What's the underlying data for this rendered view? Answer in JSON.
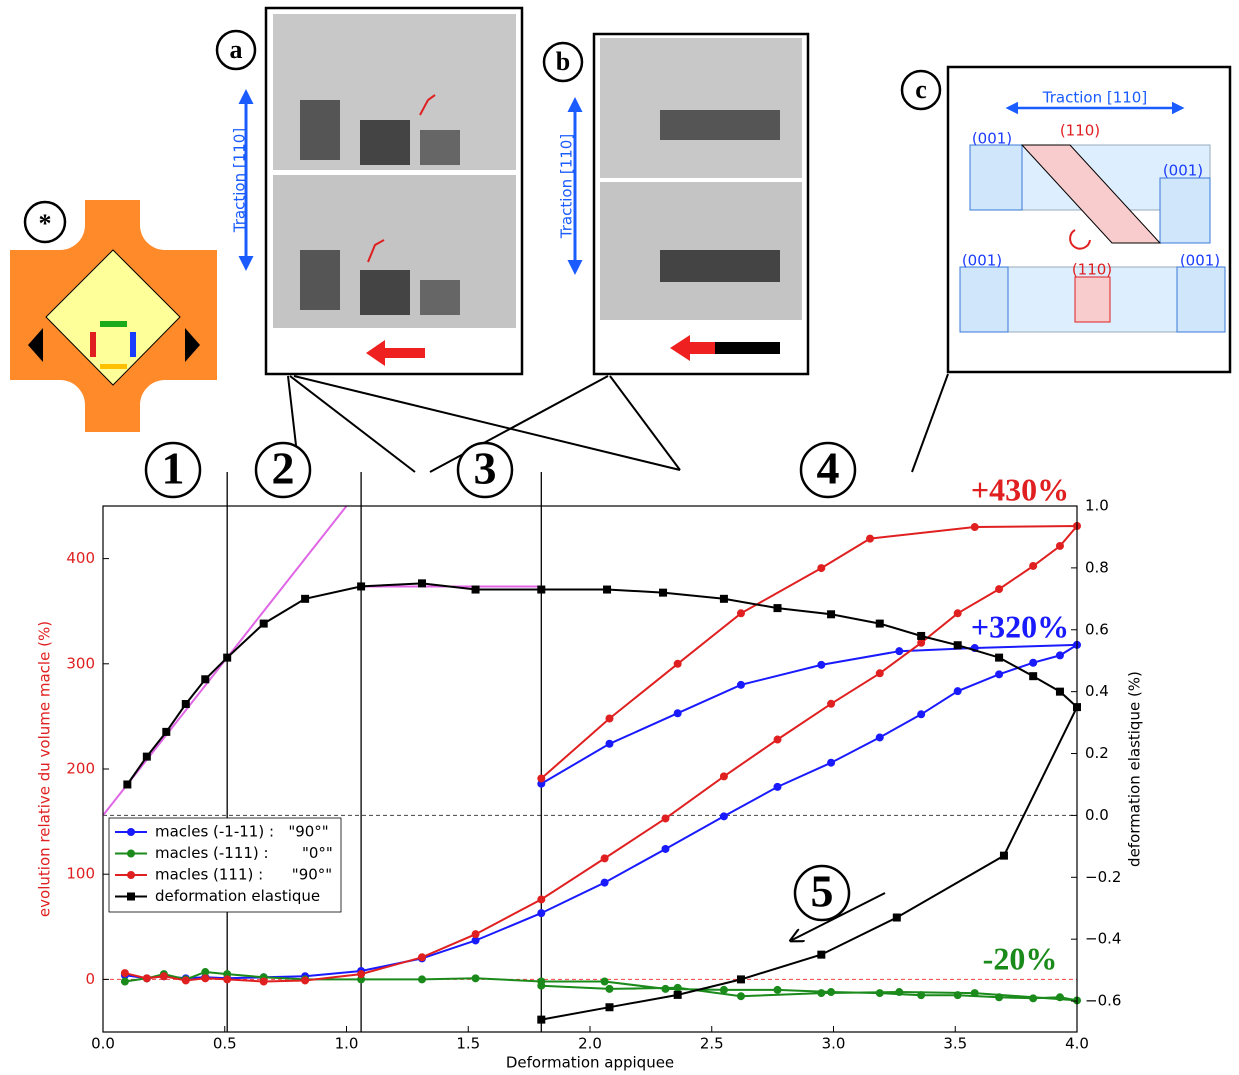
{
  "chart_data": {
    "type": "line",
    "x_label": "Deformation appiquee",
    "y_label": "evolution relative du volume macle (%)",
    "y2_label": "deformation elastique (%)",
    "xlim": [
      0,
      4
    ],
    "xticks": [
      {
        "value": 0,
        "label": "0.0"
      },
      {
        "value": 0.5,
        "label": "0.5"
      },
      {
        "value": 1,
        "label": "1.0"
      },
      {
        "value": 1.5,
        "label": "1.5"
      },
      {
        "value": 2,
        "label": "2.0"
      },
      {
        "value": 2.5,
        "label": "2.5"
      },
      {
        "value": 3,
        "label": "3.0"
      },
      {
        "value": 3.5,
        "label": "3.5"
      },
      {
        "value": 4,
        "label": "4.0"
      }
    ],
    "ylim": [
      -50,
      450
    ],
    "yticks": [
      0,
      100,
      200,
      300,
      400
    ],
    "y2lim": [
      -0.7,
      1.0
    ],
    "y2ticks": [
      {
        "value": -0.6,
        "label": "−0.6"
      },
      {
        "value": -0.4,
        "label": "−0.4"
      },
      {
        "value": -0.2,
        "label": "−0.2"
      },
      {
        "value": 0,
        "label": "0.0"
      },
      {
        "value": 0.2,
        "label": "0.2"
      },
      {
        "value": 0.4,
        "label": "0.4"
      },
      {
        "value": 0.6,
        "label": "0.6"
      },
      {
        "value": 0.8,
        "label": "0.8"
      },
      {
        "value": 1,
        "label": "1.0"
      }
    ],
    "legend": "lower left",
    "series": [
      {
        "name": "macles (-1-11) :   \"90°\"",
        "color": "#1a1aff",
        "marker": "circle",
        "x": [
          0.09,
          0.18,
          0.25,
          0.34,
          0.42,
          0.51,
          0.66,
          0.83,
          1.06,
          1.31,
          1.53,
          1.8,
          2.06,
          2.31,
          2.55,
          2.77,
          2.99,
          3.19,
          3.36,
          3.51,
          3.68,
          3.82,
          3.93,
          4.0,
          3.58,
          3.27,
          2.95,
          2.62,
          2.36,
          2.08,
          1.8
        ],
        "values": [
          4,
          1,
          3,
          1,
          2,
          1,
          2,
          3,
          8,
          20,
          37,
          63,
          92,
          124,
          155,
          183,
          206,
          230,
          252,
          274,
          290,
          301,
          308,
          318,
          315,
          312,
          299,
          280,
          253,
          224,
          186
        ]
      },
      {
        "name": "macles (-111) :       \"0°\"",
        "color": "#1a8a1a",
        "marker": "circle",
        "x": [
          0.09,
          0.18,
          0.25,
          0.34,
          0.42,
          0.51,
          0.66,
          0.83,
          1.06,
          1.31,
          1.53,
          1.8,
          2.06,
          2.31,
          2.55,
          2.77,
          2.99,
          3.19,
          3.36,
          3.51,
          3.68,
          3.82,
          3.93,
          4.0,
          3.58,
          3.27,
          2.95,
          2.62,
          2.36,
          2.08,
          1.8
        ],
        "values": [
          -2,
          1,
          5,
          0,
          7,
          5,
          2,
          0,
          0,
          0,
          1,
          -2,
          -2,
          -9,
          -10,
          -10,
          -12,
          -13,
          -15,
          -15,
          -17,
          -18,
          -17,
          -20,
          -13,
          -12,
          -13,
          -16,
          -8,
          -9,
          -6
        ]
      },
      {
        "name": "macles (111) :      \"90°\"",
        "color": "#e02020",
        "marker": "circle",
        "x": [
          0.09,
          0.18,
          0.25,
          0.34,
          0.42,
          0.51,
          0.66,
          0.83,
          1.06,
          1.31,
          1.53,
          1.8,
          2.06,
          2.31,
          2.55,
          2.77,
          2.99,
          3.19,
          3.36,
          3.51,
          3.68,
          3.82,
          3.93,
          4.0,
          3.58,
          3.15,
          2.95,
          2.62,
          2.36,
          2.08,
          1.8
        ],
        "values": [
          6,
          1,
          3,
          -1,
          1,
          0,
          -2,
          -1,
          5,
          21,
          43,
          76,
          115,
          153,
          193,
          228,
          262,
          291,
          320,
          348,
          371,
          393,
          412,
          431,
          430,
          419,
          391,
          348,
          300,
          248,
          191
        ]
      },
      {
        "name": "deformation elastique",
        "color": "#000000",
        "marker": "square",
        "axis": "y2",
        "x": [
          0.1,
          0.18,
          0.26,
          0.34,
          0.42,
          0.51,
          0.66,
          0.83,
          1.06,
          1.31,
          1.53,
          1.8,
          2.07,
          2.3,
          2.55,
          2.77,
          2.99,
          3.19,
          3.36,
          3.51,
          3.68,
          3.82,
          3.93,
          4.0,
          3.7,
          3.26,
          2.95,
          2.62,
          2.36,
          2.08,
          1.8
        ],
        "values": [
          0.1,
          0.19,
          0.27,
          0.36,
          0.44,
          0.51,
          0.62,
          0.7,
          0.74,
          0.75,
          0.73,
          0.73,
          0.73,
          0.72,
          0.7,
          0.67,
          0.65,
          0.62,
          0.58,
          0.55,
          0.51,
          0.45,
          0.4,
          0.35,
          -0.13,
          -0.33,
          -0.45,
          -0.53,
          -0.58,
          -0.62,
          -0.66
        ]
      }
    ],
    "fits": {
      "color": "#e066e6",
      "lines": [
        {
          "x": [
            0,
            1.0
          ],
          "values": [
            0,
            1.0
          ],
          "axis": "y2"
        },
        {
          "x": [
            1.06,
            1.8
          ],
          "values": [
            0.74,
            0.74
          ],
          "axis": "y2"
        }
      ]
    },
    "reference_lines": [
      {
        "axis": "y2",
        "value": 0,
        "color": "#444444"
      },
      {
        "axis": "y",
        "value": 0,
        "color": "#ff4040"
      }
    ],
    "phase_bounds": [
      0.51,
      1.06,
      1.8
    ],
    "phases": [
      "1",
      "2",
      "3",
      "4",
      "5"
    ],
    "annotations": [
      {
        "text": "+430%",
        "color": "#e02020"
      },
      {
        "text": "+320%",
        "color": "#1a1aff"
      },
      {
        "text": "-20%",
        "color": "#1a8a1a"
      }
    ]
  },
  "insets": {
    "star": {
      "label": "*"
    },
    "a": {
      "label": "a",
      "traction": "Traction [110]"
    },
    "b": {
      "label": "b",
      "traction": "Traction [110]"
    },
    "c": {
      "label": "c",
      "traction": "Traction [110]",
      "planes": [
        "(001)",
        "(110)",
        "(001)",
        "(001)",
        "(110)",
        "(001)"
      ]
    }
  }
}
